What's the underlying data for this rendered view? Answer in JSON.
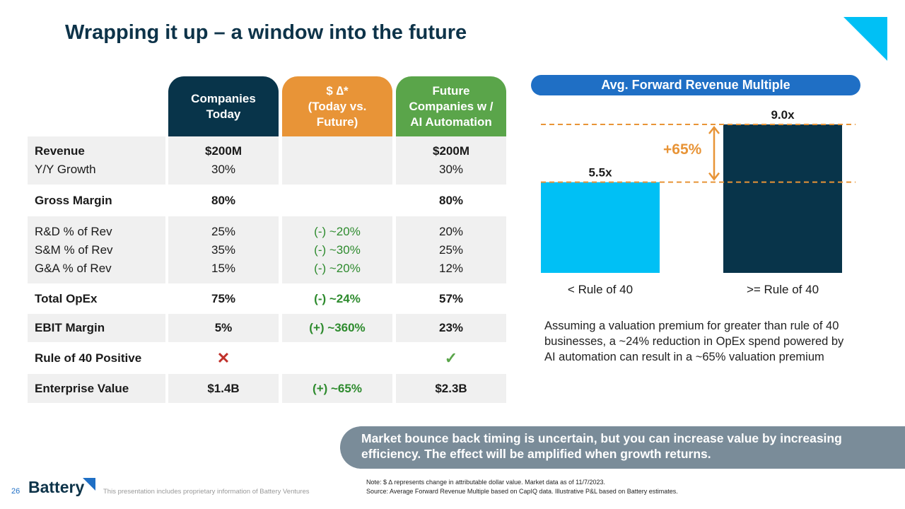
{
  "title": "Wrapping it up – a window into the future",
  "table": {
    "headers": [
      {
        "lines": [
          "Companies",
          "Today"
        ],
        "color": "#08344a"
      },
      {
        "lines": [
          "$ ∆*",
          "(Today vs.",
          "Future)"
        ],
        "color": "#e89437"
      },
      {
        "lines": [
          "Future",
          "Companies w /",
          "AI Automation"
        ],
        "color": "#5aa54a"
      }
    ],
    "rows": [
      {
        "labels": [
          "Revenue",
          "Y/Y Growth"
        ],
        "today": [
          "$200M",
          "30%"
        ],
        "delta": [
          "",
          ""
        ],
        "future": [
          "$200M",
          "30%"
        ]
      },
      {
        "labels": [
          "Gross Margin"
        ],
        "today": [
          "80%"
        ],
        "delta": [
          ""
        ],
        "future": [
          "80%"
        ]
      },
      {
        "labels": [
          "R&D % of Rev",
          "S&M % of Rev",
          "G&A % of Rev"
        ],
        "today": [
          "25%",
          "35%",
          "15%"
        ],
        "delta": [
          "(-) ~20%",
          "(-) ~30%",
          "(-) ~20%"
        ],
        "future": [
          "20%",
          "25%",
          "12%"
        ]
      },
      {
        "labels": [
          "Total OpEx"
        ],
        "today": [
          "75%"
        ],
        "delta": [
          "(-) ~24%"
        ],
        "future": [
          "57%"
        ]
      },
      {
        "labels": [
          "EBIT Margin"
        ],
        "today": [
          "5%"
        ],
        "delta": [
          "(+) ~360%"
        ],
        "future": [
          "23%"
        ]
      },
      {
        "labels": [
          "Rule of 40 Positive"
        ],
        "today": [
          "✕"
        ],
        "delta": [
          ""
        ],
        "future": [
          "✓"
        ]
      },
      {
        "labels": [
          "Enterprise Value"
        ],
        "today": [
          "$1.4B"
        ],
        "delta": [
          "(+) ~65%"
        ],
        "future": [
          "$2.3B"
        ]
      }
    ]
  },
  "chart_data": {
    "type": "bar",
    "title": "Avg. Forward Revenue Multiple",
    "categories": [
      "< Rule of 40",
      ">= Rule of 40"
    ],
    "values": [
      5.5,
      9.0
    ],
    "value_labels": [
      "5.5x",
      "9.0x"
    ],
    "colors": [
      "#00c0f5",
      "#08344a"
    ],
    "annotation": "+65%",
    "ylim": [
      0,
      9.0
    ]
  },
  "assumption": "Assuming a valuation premium for greater than rule of 40 businesses, a ~24% reduction in OpEx spend powered by AI automation can result in a ~65% valuation premium",
  "callout": "Market bounce back timing is uncertain, but you can increase value by increasing efficiency. The effect will be amplified when growth returns.",
  "notes": {
    "line1": "Note: $ ∆ represents change in attributable dollar value. Market data as of 11/7/2023.",
    "line2": "Source: Average Forward Revenue Multiple based on CapIQ data. Illustrative P&L based on Battery estimates."
  },
  "footer": {
    "page_number": "26",
    "logo": "Battery",
    "disclaimer": "This presentation includes proprietary information of Battery Ventures"
  }
}
